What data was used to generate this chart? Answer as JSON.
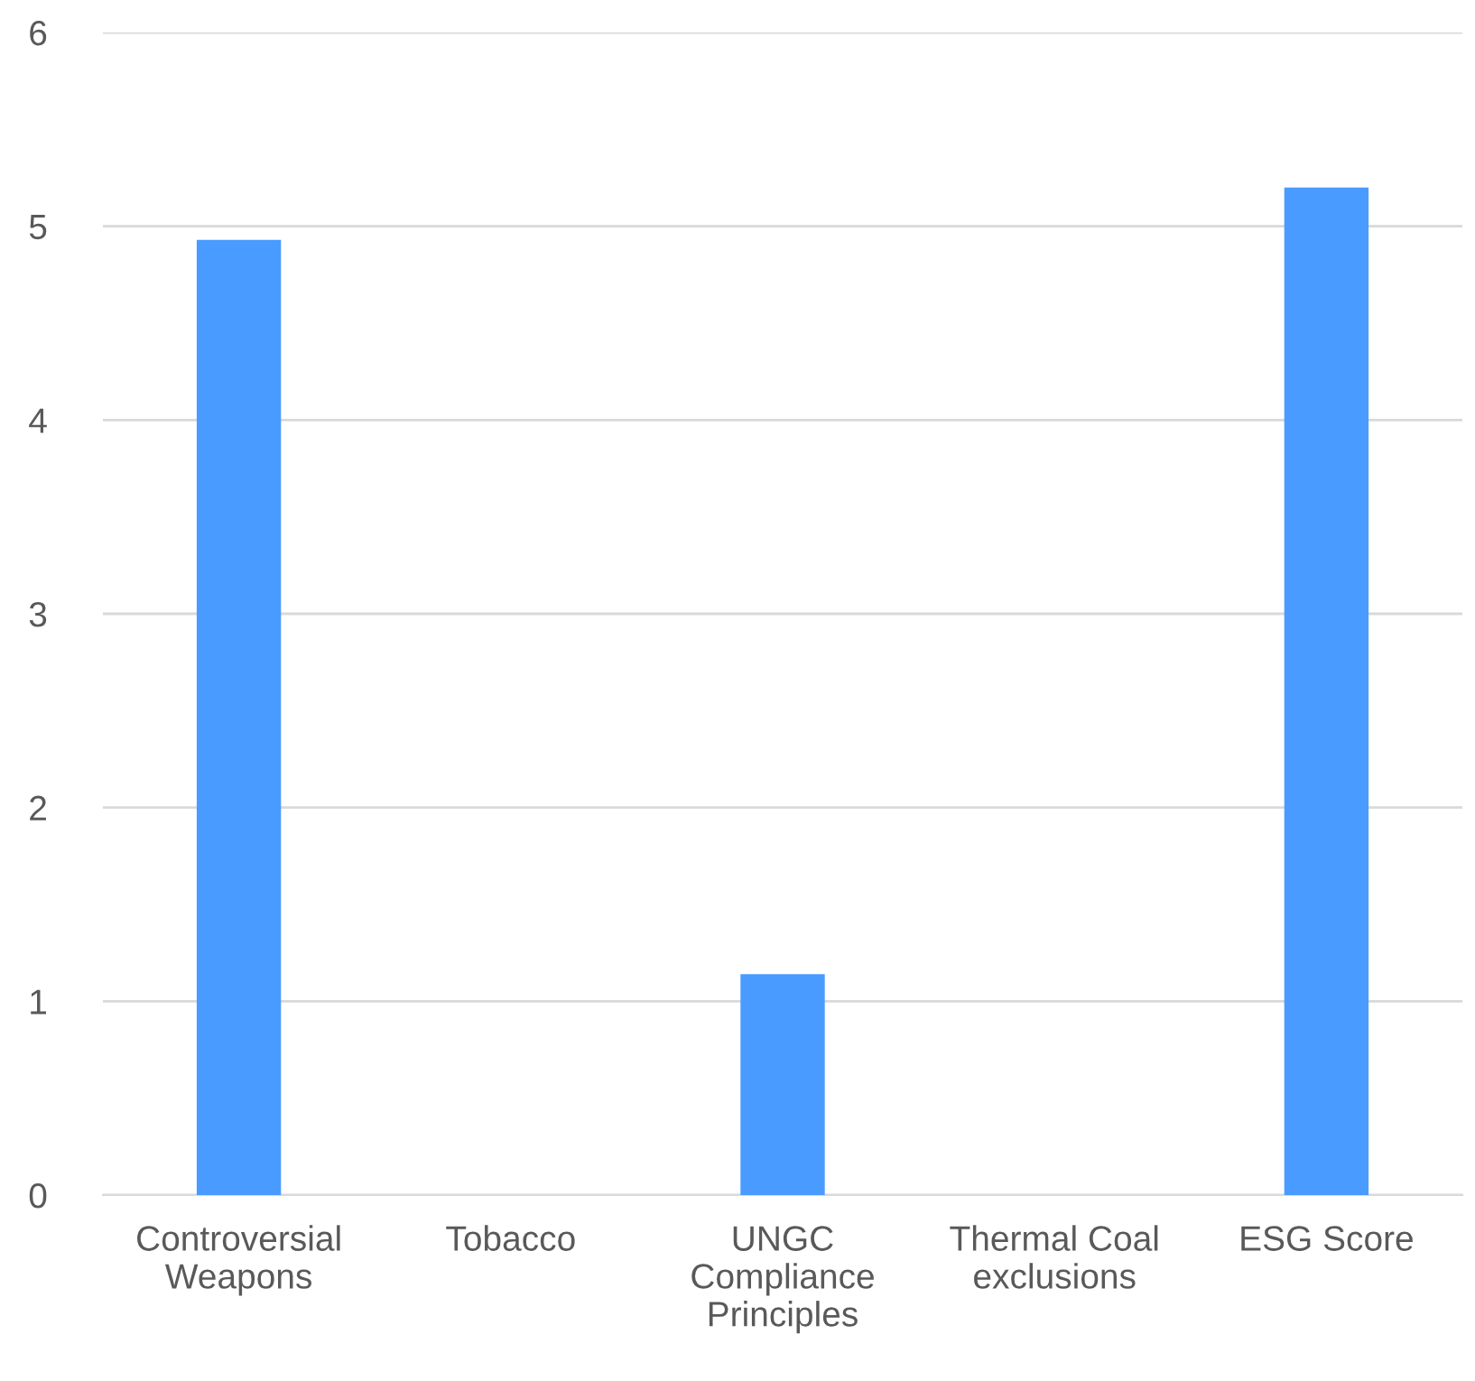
{
  "chart_data": {
    "type": "bar",
    "categories": [
      "Controversial\nWeapons",
      "Tobacco",
      "UNGC\nCompliance\nPrinciples",
      "Thermal Coal\nexclusions",
      "ESG Score"
    ],
    "values": [
      4.93,
      0,
      1.14,
      0,
      5.2
    ],
    "color": "#4a9bff",
    "ylim": [
      0,
      6
    ],
    "yticks": [
      0,
      1,
      2,
      3,
      4,
      5,
      6
    ],
    "grid": "y",
    "legend": false
  }
}
